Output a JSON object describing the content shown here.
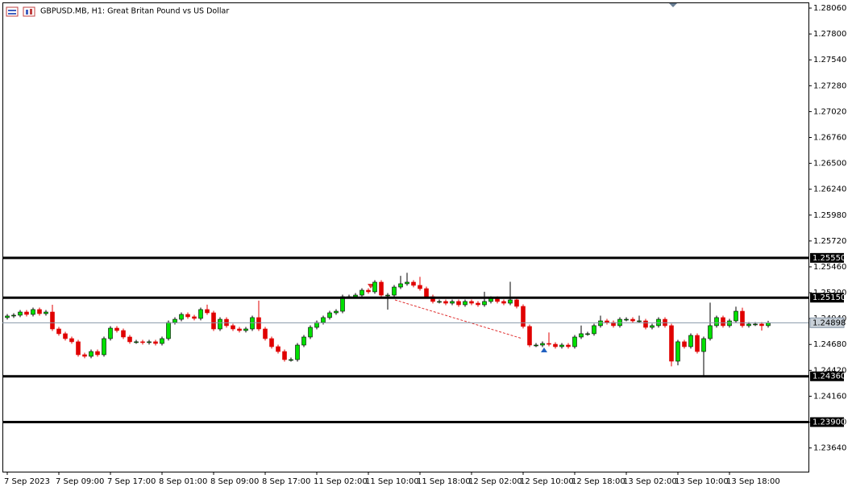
{
  "chart_data": {
    "type": "candlestick",
    "title": "GBPUSD.MB, H1:  Great Britan Pound vs US Dollar",
    "up_color": "#00e000",
    "down_color": "#e00000",
    "ylim": [
      1.23402,
      1.28117
    ],
    "yticks": [
      {
        "value": 1.2806,
        "label": "1.28060"
      },
      {
        "value": 1.278,
        "label": "1.27800"
      },
      {
        "value": 1.2754,
        "label": "1.27540"
      },
      {
        "value": 1.2728,
        "label": "1.27280"
      },
      {
        "value": 1.2702,
        "label": "1.27020"
      },
      {
        "value": 1.2676,
        "label": "1.26760"
      },
      {
        "value": 1.265,
        "label": "1.26500"
      },
      {
        "value": 1.2624,
        "label": "1.26240"
      },
      {
        "value": 1.2598,
        "label": "1.25980"
      },
      {
        "value": 1.2572,
        "label": "1.25720"
      },
      {
        "value": 1.2546,
        "label": "1.25460"
      },
      {
        "value": 1.252,
        "label": "1.25200"
      },
      {
        "value": 1.2494,
        "label": "1.24940"
      },
      {
        "value": 1.2468,
        "label": "1.24680"
      },
      {
        "value": 1.2442,
        "label": "1.24420"
      },
      {
        "value": 1.2416,
        "label": "1.24160"
      },
      {
        "value": 1.239,
        "label": "1.23900"
      },
      {
        "value": 1.2364,
        "label": "1.23640"
      }
    ],
    "levels": [
      {
        "value": 1.2555,
        "label": "1.25550"
      },
      {
        "value": 1.2515,
        "label": "1.25150"
      },
      {
        "value": 1.2436,
        "label": "1.24360"
      },
      {
        "value": 1.239,
        "label": "1.23900"
      }
    ],
    "current_price": {
      "value": 1.24898,
      "label": "1.24898"
    },
    "categories": [
      "7 Sep 2023",
      null,
      null,
      null,
      null,
      null,
      null,
      null,
      "7 Sep 09:00",
      null,
      null,
      null,
      null,
      null,
      null,
      null,
      "7 Sep 17:00",
      null,
      null,
      null,
      null,
      null,
      null,
      null,
      "8 Sep 01:00",
      null,
      null,
      null,
      null,
      null,
      null,
      null,
      "8 Sep 09:00",
      null,
      null,
      null,
      null,
      null,
      null,
      null,
      "8 Sep 17:00",
      null,
      null,
      null,
      null,
      null,
      null,
      null,
      "11 Sep 02:00",
      null,
      null,
      null,
      null,
      null,
      null,
      null,
      "11 Sep 10:00",
      null,
      null,
      null,
      null,
      null,
      null,
      null,
      "11 Sep 18:00",
      null,
      null,
      null,
      null,
      null,
      null,
      null,
      "12 Sep 02:00",
      null,
      null,
      null,
      null,
      null,
      null,
      null,
      "12 Sep 10:00",
      null,
      null,
      null,
      null,
      null,
      null,
      null,
      "12 Sep 18:00",
      null,
      null,
      null,
      null,
      null,
      null,
      null,
      "13 Sep 02:00",
      null,
      null,
      null,
      null,
      null,
      null,
      null,
      "13 Sep 10:00",
      null,
      null,
      null,
      null,
      null,
      null,
      null,
      "13 Sep 18:00",
      null,
      null,
      null,
      null,
      null,
      null
    ],
    "open": [
      1.2495,
      1.24966,
      1.24974,
      1.25006,
      1.24982,
      1.25031,
      1.2499,
      1.25006,
      1.24836,
      1.24788,
      1.24739,
      1.24707,
      1.24577,
      1.24561,
      1.24609,
      1.24577,
      1.24739,
      1.24844,
      1.2482,
      1.24755,
      1.24707,
      1.24707,
      1.24699,
      1.24707,
      1.2469,
      1.24739,
      1.24901,
      1.24933,
      1.24982,
      1.24958,
      1.24942,
      1.25031,
      1.24998,
      1.24836,
      1.24933,
      1.24869,
      1.24836,
      1.2482,
      1.24836,
      1.2495,
      1.24836,
      1.24739,
      1.24658,
      1.24609,
      1.24528,
      1.24528,
      1.24674,
      1.24755,
      1.24852,
      1.24901,
      1.2495,
      1.24998,
      1.25014,
      1.2516,
      1.2516,
      1.25176,
      1.25225,
      1.25209,
      1.25306,
      1.25176,
      1.25176,
      1.25257,
      1.2529,
      1.25306,
      1.25274,
      1.25241,
      1.2516,
      1.25112,
      1.25112,
      1.25095,
      1.25112,
      1.25079,
      1.25112,
      1.25095,
      1.25079,
      1.25112,
      1.25144,
      1.25112,
      1.25095,
      1.25128,
      1.25063,
      1.24861,
      1.24674,
      1.24674,
      1.2469,
      1.24682,
      1.24658,
      1.24674,
      1.24658,
      1.24755,
      1.24788,
      1.24788,
      1.24869,
      1.24917,
      1.24901,
      1.24869,
      1.24933,
      1.24933,
      1.24917,
      1.24917,
      1.24852,
      1.24869,
      1.24933,
      1.24869,
      1.24512,
      1.24707,
      1.24658,
      1.24771,
      1.24609,
      1.24739,
      1.24869,
      1.2495,
      1.24869,
      1.24917,
      1.25014,
      1.24869,
      1.24885,
      1.24885,
      1.24869
    ],
    "high": [
      1.24986,
      1.24994,
      1.25026,
      1.25026,
      1.25051,
      1.25051,
      1.25026,
      1.25079,
      1.24856,
      1.24808,
      1.24759,
      1.24727,
      1.24597,
      1.24629,
      1.24629,
      1.24759,
      1.24864,
      1.24864,
      1.2484,
      1.24775,
      1.24727,
      1.24727,
      1.24727,
      1.24727,
      1.24759,
      1.24921,
      1.24953,
      1.25002,
      1.25002,
      1.24978,
      1.25051,
      1.2508,
      1.25018,
      1.24953,
      1.24953,
      1.24889,
      1.24856,
      1.24856,
      1.2497,
      1.2512,
      1.24856,
      1.24759,
      1.24678,
      1.24629,
      1.24548,
      1.24694,
      1.24775,
      1.24872,
      1.24921,
      1.2497,
      1.25018,
      1.25034,
      1.2518,
      1.2518,
      1.25196,
      1.25245,
      1.25245,
      1.25326,
      1.25326,
      1.25196,
      1.25277,
      1.2537,
      1.254,
      1.25326,
      1.2536,
      1.25261,
      1.2518,
      1.25132,
      1.25132,
      1.25132,
      1.25132,
      1.25132,
      1.25132,
      1.25115,
      1.2521,
      1.25164,
      1.25164,
      1.25132,
      1.2531,
      1.25148,
      1.25083,
      1.24881,
      1.24694,
      1.2471,
      1.248,
      1.24702,
      1.24694,
      1.24694,
      1.24775,
      1.2487,
      1.24808,
      1.24889,
      1.2497,
      1.24937,
      1.24921,
      1.24953,
      1.24953,
      1.24953,
      1.2497,
      1.24937,
      1.24889,
      1.24953,
      1.24953,
      1.24889,
      1.24727,
      1.24727,
      1.24791,
      1.24791,
      1.24759,
      1.251,
      1.2497,
      1.2497,
      1.24937,
      1.2506,
      1.2505,
      1.24905,
      1.24905,
      1.24905,
      1.24918
    ],
    "low": [
      1.2493,
      1.24946,
      1.24954,
      1.24962,
      1.24962,
      1.2497,
      1.2497,
      1.24816,
      1.24768,
      1.24719,
      1.24687,
      1.24557,
      1.24541,
      1.24541,
      1.24557,
      1.24557,
      1.24719,
      1.248,
      1.24735,
      1.24687,
      1.24687,
      1.24679,
      1.24679,
      1.2467,
      1.2467,
      1.24719,
      1.24881,
      1.24913,
      1.24938,
      1.24922,
      1.24922,
      1.24978,
      1.24816,
      1.24816,
      1.24849,
      1.24816,
      1.248,
      1.248,
      1.24816,
      1.24816,
      1.24719,
      1.24638,
      1.24589,
      1.24508,
      1.24508,
      1.24508,
      1.24654,
      1.24735,
      1.24832,
      1.24881,
      1.2493,
      1.24978,
      1.24994,
      1.2514,
      1.2514,
      1.25156,
      1.25189,
      1.25189,
      1.25156,
      1.2503,
      1.25156,
      1.25237,
      1.2527,
      1.25254,
      1.25221,
      1.2514,
      1.25092,
      1.25092,
      1.25075,
      1.25075,
      1.25059,
      1.25059,
      1.25075,
      1.25059,
      1.25059,
      1.25092,
      1.25092,
      1.25075,
      1.25075,
      1.25043,
      1.24841,
      1.24654,
      1.24654,
      1.24654,
      1.24662,
      1.24638,
      1.24638,
      1.24638,
      1.24638,
      1.24735,
      1.24768,
      1.24768,
      1.24849,
      1.24881,
      1.24849,
      1.24849,
      1.24913,
      1.24897,
      1.24897,
      1.24832,
      1.24832,
      1.24849,
      1.24849,
      1.2446,
      1.2447,
      1.24638,
      1.24638,
      1.24589,
      1.2436,
      1.24719,
      1.24849,
      1.24849,
      1.24849,
      1.24897,
      1.24849,
      1.24849,
      1.24865,
      1.2482,
      1.24849
    ],
    "close": [
      1.24966,
      1.24974,
      1.25006,
      1.24982,
      1.25031,
      1.2499,
      1.25006,
      1.24836,
      1.24788,
      1.24739,
      1.24707,
      1.24577,
      1.24561,
      1.24609,
      1.24577,
      1.24739,
      1.24844,
      1.2482,
      1.24755,
      1.24707,
      1.24707,
      1.24699,
      1.24707,
      1.2469,
      1.24739,
      1.24901,
      1.24933,
      1.24982,
      1.24958,
      1.24942,
      1.25031,
      1.24998,
      1.24836,
      1.24933,
      1.24869,
      1.24836,
      1.2482,
      1.24836,
      1.2495,
      1.24836,
      1.24739,
      1.24658,
      1.24609,
      1.24528,
      1.24528,
      1.24674,
      1.24755,
      1.24852,
      1.24901,
      1.2495,
      1.24998,
      1.25014,
      1.2516,
      1.2516,
      1.25176,
      1.25225,
      1.25209,
      1.25306,
      1.25176,
      1.25176,
      1.25257,
      1.2529,
      1.25306,
      1.25274,
      1.25241,
      1.2516,
      1.25112,
      1.25112,
      1.25095,
      1.25112,
      1.25079,
      1.25112,
      1.25095,
      1.25079,
      1.25112,
      1.25144,
      1.25112,
      1.25095,
      1.25128,
      1.25063,
      1.24861,
      1.24674,
      1.24674,
      1.2469,
      1.24682,
      1.24658,
      1.24674,
      1.24658,
      1.24755,
      1.24788,
      1.24788,
      1.24869,
      1.24917,
      1.24901,
      1.24869,
      1.24933,
      1.24933,
      1.24917,
      1.24917,
      1.24852,
      1.24869,
      1.24933,
      1.24869,
      1.24512,
      1.24707,
      1.24658,
      1.24771,
      1.24609,
      1.24739,
      1.24869,
      1.2495,
      1.24869,
      1.24917,
      1.25014,
      1.24869,
      1.24885,
      1.24885,
      1.24869,
      1.24898
    ]
  }
}
